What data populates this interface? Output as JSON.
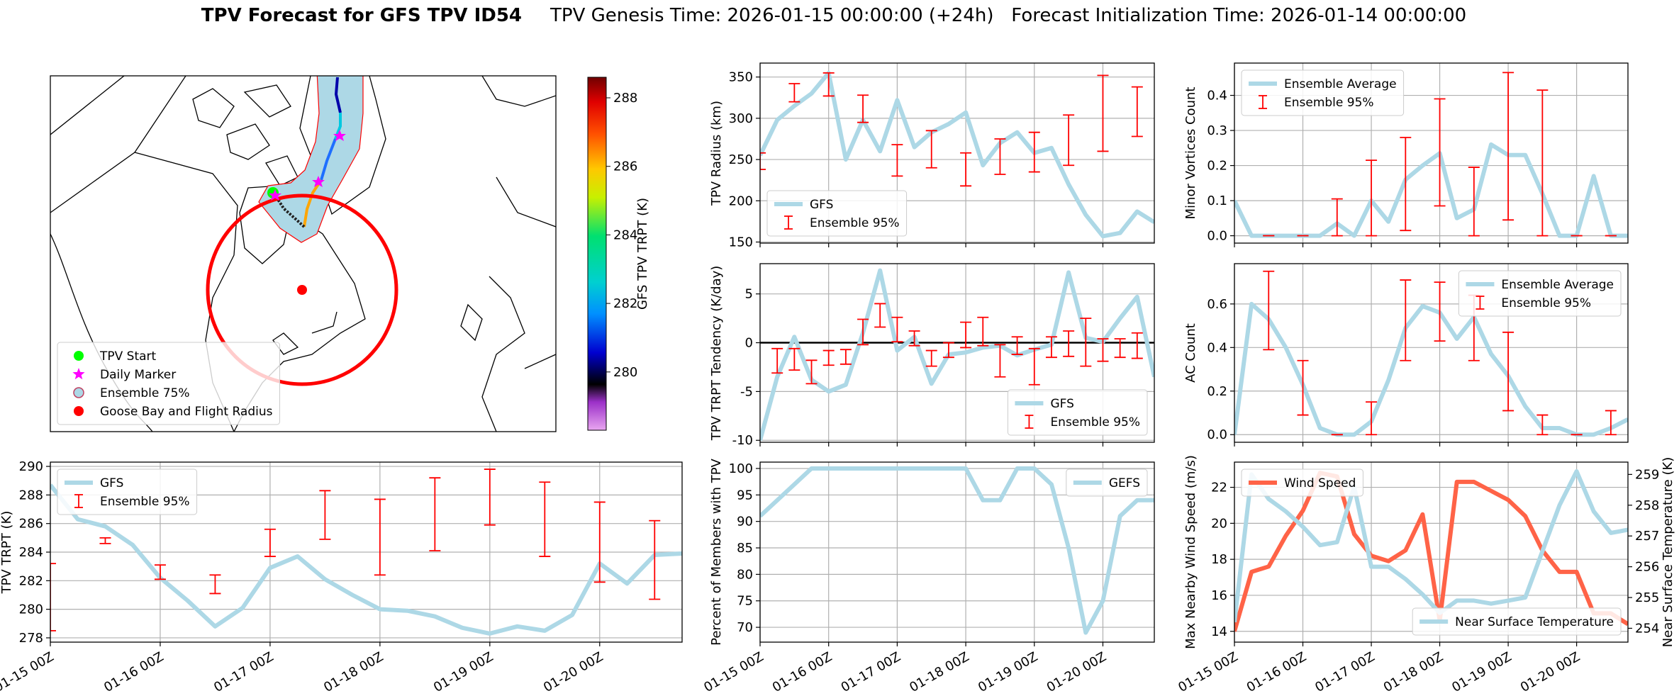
{
  "title": "TPV Forecast for GFS TPV ID54",
  "subtitle": "TPV Genesis Time: 2026-01-15 00:00:00 (+24h)   Forecast Initialization Time: 2026-01-14 00:00:00",
  "chart_data": [
    {
      "type": "map",
      "legend": "lower left",
      "legend_entries": [
        {
          "label": "TPV Start",
          "color": "#00ff00"
        },
        {
          "label": "Daily Marker",
          "color": "#ff00ff"
        },
        {
          "label": "Ensemble 75%",
          "color": "#add8e6"
        },
        {
          "label": "Goose Bay and Flight Radius",
          "color": "#ff0000"
        }
      ],
      "colorbar_label": "GFS TPV TRPT (K)",
      "clim": [
        278.3,
        288.6
      ],
      "cticks": [
        280,
        282,
        284,
        286,
        288
      ]
    },
    {
      "type": "line",
      "ylabel": "TPV TRPT (K)",
      "ylim": [
        277.7,
        290.3
      ],
      "yticks": [
        278,
        280,
        282,
        284,
        286,
        288,
        290
      ],
      "grid": true,
      "legend": "upper left",
      "categories": [
        "01-15 00Z",
        null,
        null,
        null,
        "01-16 00Z",
        null,
        null,
        null,
        "01-17 00Z",
        null,
        null,
        null,
        "01-18 00Z",
        null,
        null,
        null,
        "01-19 00Z",
        null,
        null,
        null,
        "01-20 00Z",
        null,
        null,
        null
      ],
      "series": [
        {
          "name": "GFS",
          "color": "#add8e6",
          "values": [
            288.7,
            286.3,
            285.8,
            284.5,
            282.2,
            280.6,
            278.8,
            280.1,
            282.9,
            283.7,
            282.1,
            281.0,
            280.0,
            279.9,
            279.5,
            278.7,
            278.3,
            278.8,
            278.5,
            279.6,
            283.2,
            281.8,
            283.8,
            283.9
          ]
        },
        {
          "name": "Ensemble 95%",
          "color": "#ff0000",
          "low": [
            278.5,
            null,
            284.6,
            null,
            282.1,
            null,
            281.1,
            null,
            283.7,
            null,
            284.9,
            null,
            282.4,
            null,
            284.1,
            null,
            285.9,
            null,
            283.7,
            null,
            281.9,
            null,
            280.7,
            null
          ],
          "high": [
            283.2,
            null,
            285.0,
            null,
            283.1,
            null,
            282.4,
            null,
            285.6,
            null,
            288.3,
            null,
            287.7,
            null,
            289.2,
            null,
            289.8,
            null,
            288.9,
            null,
            287.5,
            null,
            286.2,
            null
          ]
        }
      ]
    },
    {
      "type": "line",
      "ylabel": "TPV Radius (km)",
      "ylim": [
        148.7,
        366.9
      ],
      "yticks": [
        150,
        200,
        250,
        300,
        350
      ],
      "grid": true,
      "legend": "lower left",
      "categories": [
        null,
        null,
        null,
        null,
        null,
        null,
        null,
        null,
        null,
        null,
        null,
        null,
        null,
        null,
        null,
        null,
        null,
        null,
        null,
        null,
        null,
        null,
        null,
        null
      ],
      "series": [
        {
          "name": "GFS",
          "color": "#add8e6",
          "values": [
            255,
            298,
            315,
            330,
            355,
            250,
            298,
            260,
            322,
            265,
            283,
            293,
            307,
            243,
            270,
            283,
            258,
            264,
            220,
            183,
            157,
            161,
            187,
            174
          ]
        },
        {
          "name": "Ensemble 95%",
          "color": "#ff0000",
          "low": [
            238,
            null,
            320,
            null,
            327,
            null,
            295,
            null,
            230,
            null,
            240,
            null,
            218,
            null,
            232,
            null,
            235,
            null,
            243,
            null,
            260,
            null,
            278,
            null
          ],
          "high": [
            258,
            null,
            342,
            null,
            355,
            null,
            328,
            null,
            268,
            null,
            285,
            null,
            258,
            null,
            275,
            null,
            283,
            null,
            304,
            null,
            352,
            null,
            338,
            null
          ]
        }
      ]
    },
    {
      "type": "line",
      "ylabel": "Minor Vortices Count",
      "ylim": [
        -0.021,
        0.492
      ],
      "yticks": [
        {
          "value": 0,
          "label": "0.0"
        },
        0.1,
        0.2,
        0.3,
        0.4
      ],
      "grid": true,
      "legend": "upper left",
      "categories": [
        null,
        null,
        null,
        null,
        null,
        null,
        null,
        null,
        null,
        null,
        null,
        null,
        null,
        null,
        null,
        null,
        null,
        null,
        null,
        null,
        null,
        null,
        null,
        null
      ],
      "series": [
        {
          "name": "Ensemble Average",
          "color": "#add8e6",
          "values": [
            0.1,
            0,
            0,
            0,
            0,
            0,
            0.035,
            0,
            0.1,
            0.04,
            0.16,
            0.2,
            0.235,
            0.05,
            0.075,
            0.26,
            0.23,
            0.23,
            0.12,
            0,
            0,
            0.17,
            0,
            0
          ]
        },
        {
          "name": "Ensemble 95%",
          "color": "#ff0000",
          "low": [
            null,
            null,
            0,
            null,
            0,
            null,
            0,
            null,
            0,
            null,
            0.015,
            null,
            0.085,
            null,
            0,
            null,
            0.045,
            null,
            0,
            null,
            0,
            null,
            0,
            null
          ],
          "high": [
            null,
            null,
            0,
            null,
            0,
            null,
            0.105,
            null,
            0.215,
            null,
            0.28,
            null,
            0.39,
            null,
            0.195,
            null,
            0.465,
            null,
            0.415,
            null,
            0,
            null,
            0,
            null
          ]
        }
      ]
    },
    {
      "type": "line",
      "ylabel": "TPV TRPT Tendency (K/day)",
      "ylim": [
        -10.2,
        8.1
      ],
      "yticks": [
        -10,
        -5,
        0,
        5
      ],
      "grid": true,
      "legend": "lower right",
      "hline": 0,
      "categories": [
        null,
        null,
        null,
        null,
        null,
        null,
        null,
        null,
        null,
        null,
        null,
        null,
        null,
        null,
        null,
        null,
        null,
        null,
        null,
        null,
        null,
        null,
        null,
        null
      ],
      "series": [
        {
          "name": "GFS",
          "color": "#add8e6",
          "values": [
            -10,
            -3.5,
            0.6,
            -3.8,
            -5.0,
            -4.3,
            1.0,
            7.4,
            -0.8,
            0.6,
            -4.2,
            -1.2,
            -1.0,
            -0.5,
            -0.3,
            -1.3,
            -0.7,
            -0.2,
            7.2,
            0.5,
            0.1,
            2.5,
            4.7,
            -3.5
          ]
        },
        {
          "name": "Ensemble 95%",
          "color": "#ff0000",
          "low": [
            null,
            -3.1,
            -2.8,
            -4.2,
            -2.3,
            -2.2,
            -0.2,
            1.6,
            0.1,
            -0.3,
            -2.4,
            -1.5,
            -0.5,
            -0.3,
            -3.5,
            -1.2,
            -4.3,
            -1.5,
            -1.4,
            -2.4,
            -1.9,
            -1.5,
            -1.6,
            null
          ],
          "high": [
            null,
            -0.6,
            -0.6,
            -1.8,
            -0.8,
            -0.7,
            2.4,
            4.0,
            2.6,
            1.2,
            -0.8,
            0.0,
            2.1,
            2.6,
            -0.2,
            0.6,
            -0.6,
            0.6,
            1.2,
            2.5,
            0.4,
            0.4,
            1.0,
            null
          ]
        }
      ]
    },
    {
      "type": "line",
      "ylabel": "AC Count",
      "ylim": [
        -0.035,
        0.785
      ],
      "yticks": [
        {
          "value": 0,
          "label": "0.0"
        },
        0.2,
        0.4,
        0.6
      ],
      "grid": true,
      "legend": "upper right",
      "categories": [
        null,
        null,
        null,
        null,
        null,
        null,
        null,
        null,
        null,
        null,
        null,
        null,
        null,
        null,
        null,
        null,
        null,
        null,
        null,
        null,
        null,
        null,
        null,
        null
      ],
      "series": [
        {
          "name": "Ensemble Average",
          "color": "#add8e6",
          "values": [
            0,
            0.6,
            0.53,
            0.4,
            0.23,
            0.03,
            0,
            0,
            0.06,
            0.25,
            0.49,
            0.59,
            0.56,
            0.44,
            0.54,
            0.37,
            0.27,
            0.13,
            0.03,
            0.03,
            0,
            0,
            0.03,
            0.07
          ]
        },
        {
          "name": "Ensemble 95%",
          "color": "#ff0000",
          "low": [
            null,
            null,
            0.39,
            null,
            0.09,
            null,
            0,
            null,
            0,
            null,
            0.34,
            null,
            0.43,
            null,
            0.34,
            null,
            0.11,
            null,
            0,
            null,
            0,
            null,
            0,
            null
          ],
          "high": [
            null,
            null,
            0.75,
            null,
            0.34,
            null,
            0,
            null,
            0.15,
            null,
            0.71,
            null,
            0.7,
            null,
            0.64,
            null,
            0.47,
            null,
            0.09,
            null,
            0,
            null,
            0.11,
            null
          ]
        }
      ]
    },
    {
      "type": "line",
      "ylabel": "Percent of Members with TPV",
      "ylim": [
        67.2,
        101.2
      ],
      "yticks": [
        70,
        75,
        80,
        85,
        90,
        95,
        100
      ],
      "grid": true,
      "legend": "upper right",
      "categories": [
        "01-15 00Z",
        null,
        null,
        null,
        "01-16 00Z",
        null,
        null,
        null,
        "01-17 00Z",
        null,
        null,
        null,
        "01-18 00Z",
        null,
        null,
        null,
        "01-19 00Z",
        null,
        null,
        null,
        "01-20 00Z",
        null,
        null,
        null
      ],
      "series": [
        {
          "name": "GEFS",
          "color": "#add8e6",
          "values": [
            91,
            94,
            97,
            100,
            100,
            100,
            100,
            100,
            100,
            100,
            100,
            100,
            100,
            94,
            94,
            100,
            100,
            97,
            85,
            69,
            75,
            91,
            94,
            94
          ]
        }
      ]
    },
    {
      "type": "line",
      "ylabel": "Max Nearby Wind Speed (m/s)",
      "ylabel_color": "#ff6347",
      "ylim": [
        13.4,
        23.4
      ],
      "yticks": [
        14,
        16,
        18,
        20,
        22
      ],
      "y2label": "Near Surface Temperature (K)",
      "y2label_color": "#4169e1",
      "y2lim": [
        253.55,
        259.4
      ],
      "y2ticks": [
        254,
        255,
        256,
        257,
        258,
        259
      ],
      "grid": true,
      "legend": "upper left",
      "legend2": "lower right",
      "categories": [
        "01-15 00Z",
        null,
        null,
        null,
        "01-16 00Z",
        null,
        null,
        null,
        "01-17 00Z",
        null,
        null,
        null,
        "01-18 00Z",
        null,
        null,
        null,
        "01-19 00Z",
        null,
        null,
        null,
        "01-20 00Z",
        null,
        null,
        null
      ],
      "series": [
        {
          "name": "Wind Speed",
          "color": "#ff6347",
          "values": [
            14.0,
            17.3,
            17.6,
            19.3,
            20.7,
            22.8,
            22.6,
            19.4,
            18.2,
            17.9,
            18.5,
            20.5,
            14.6,
            22.3,
            22.3,
            21.8,
            21.3,
            20.4,
            18.5,
            17.3,
            17.3,
            15.0,
            15.0,
            14.4
          ]
        },
        {
          "name": "Near Surface Temperature",
          "color": "#add8e6",
          "axis": "y2",
          "values": [
            254.2,
            259.0,
            258.2,
            257.8,
            257.3,
            256.7,
            256.8,
            258.6,
            256.0,
            256.0,
            255.6,
            255.1,
            254.5,
            254.9,
            254.9,
            254.8,
            254.9,
            255.0,
            256.5,
            258.0,
            259.1,
            257.8,
            257.1,
            257.2
          ]
        }
      ]
    }
  ]
}
